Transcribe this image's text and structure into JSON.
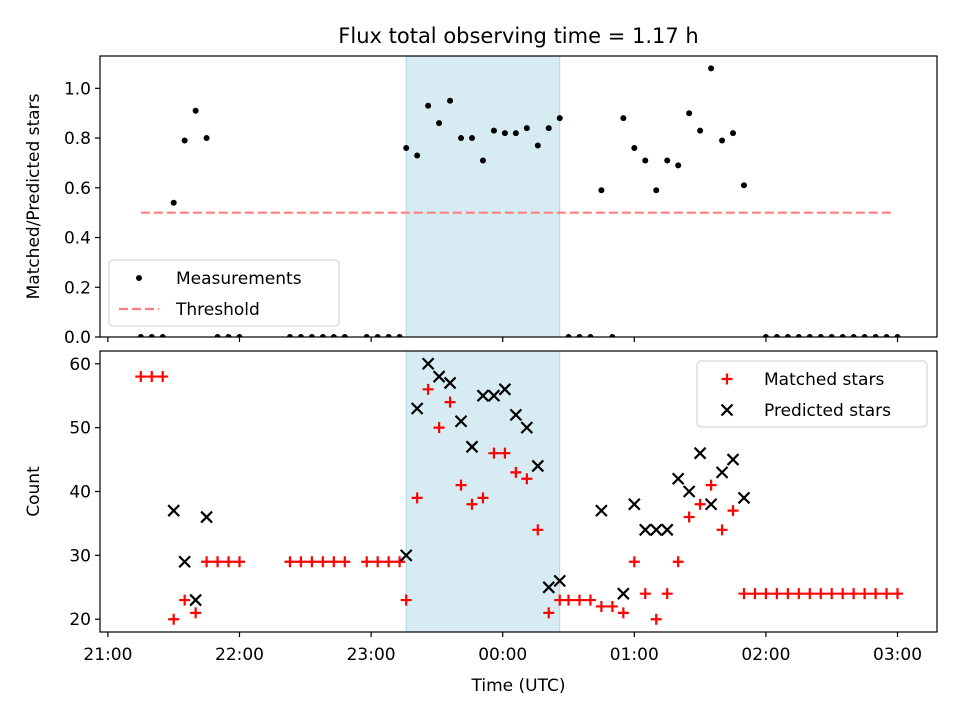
{
  "title": "Flux total observing time = 1.17 h",
  "colors": {
    "matched": "#ff0000",
    "predicted": "#000000",
    "threshold": "#ff7f7f",
    "highlight": "#add8e6"
  },
  "chart_data": [
    {
      "type": "scatter",
      "ylabel": "Matched/Predicted stars",
      "xlabel": "",
      "ylim": [
        0,
        1.13
      ],
      "yticks": [
        "0.0",
        "0.2",
        "0.4",
        "0.6",
        "0.8",
        "1.0"
      ],
      "grid": false,
      "legend_position": "lower-left",
      "highlight_span": [
        "23:16",
        "00:26"
      ],
      "series": [
        {
          "name": "Measurements",
          "marker": "dot",
          "points": [
            [
              "21:15",
              0
            ],
            [
              "21:20",
              0
            ],
            [
              "21:25",
              0
            ],
            [
              "21:30",
              0.54
            ],
            [
              "21:35",
              0.79
            ],
            [
              "21:40",
              0.91
            ],
            [
              "21:45",
              0.8
            ],
            [
              "21:50",
              0
            ],
            [
              "21:55",
              0
            ],
            [
              "22:00",
              0
            ],
            [
              "22:23",
              0
            ],
            [
              "22:28",
              0
            ],
            [
              "22:33",
              0
            ],
            [
              "22:38",
              0
            ],
            [
              "22:43",
              0
            ],
            [
              "22:48",
              0
            ],
            [
              "22:58",
              0
            ],
            [
              "23:03",
              0
            ],
            [
              "23:08",
              0
            ],
            [
              "23:13",
              0
            ],
            [
              "23:16",
              0.76
            ],
            [
              "23:21",
              0.73
            ],
            [
              "23:26",
              0.93
            ],
            [
              "23:31",
              0.86
            ],
            [
              "23:36",
              0.95
            ],
            [
              "23:41",
              0.8
            ],
            [
              "23:46",
              0.8
            ],
            [
              "23:51",
              0.71
            ],
            [
              "23:56",
              0.83
            ],
            [
              "00:01",
              0.82
            ],
            [
              "00:06",
              0.82
            ],
            [
              "00:11",
              0.84
            ],
            [
              "00:16",
              0.77
            ],
            [
              "00:21",
              0.84
            ],
            [
              "00:26",
              0.88
            ],
            [
              "00:30",
              0
            ],
            [
              "00:35",
              0
            ],
            [
              "00:40",
              0
            ],
            [
              "00:50",
              0
            ],
            [
              "00:45",
              0.59
            ],
            [
              "00:55",
              0.88
            ],
            [
              "01:00",
              0.76
            ],
            [
              "01:05",
              0.71
            ],
            [
              "01:10",
              0.59
            ],
            [
              "01:15",
              0.71
            ],
            [
              "01:20",
              0.69
            ],
            [
              "01:25",
              0.9
            ],
            [
              "01:30",
              0.83
            ],
            [
              "01:35",
              1.08
            ],
            [
              "01:40",
              0.79
            ],
            [
              "01:45",
              0.82
            ],
            [
              "01:50",
              0.61
            ],
            [
              "02:00",
              0
            ],
            [
              "02:05",
              0
            ],
            [
              "02:10",
              0
            ],
            [
              "02:15",
              0
            ],
            [
              "02:20",
              0
            ],
            [
              "02:25",
              0
            ],
            [
              "02:30",
              0
            ],
            [
              "02:35",
              0
            ],
            [
              "02:40",
              0
            ],
            [
              "02:45",
              0
            ],
            [
              "02:50",
              0
            ],
            [
              "02:55",
              0
            ],
            [
              "03:00",
              0
            ]
          ]
        },
        {
          "name": "Threshold",
          "marker": "dashed-line",
          "points": [
            [
              "21:15",
              0.5
            ],
            [
              "02:58",
              0.5
            ]
          ]
        }
      ]
    },
    {
      "type": "scatter",
      "ylabel": "Count",
      "xlabel": "Time (UTC)",
      "ylim": [
        18,
        62
      ],
      "yticks": [
        "20",
        "30",
        "40",
        "50",
        "60"
      ],
      "xticks": [
        "21:00",
        "22:00",
        "23:00",
        "00:00",
        "01:00",
        "02:00",
        "03:00"
      ],
      "grid": false,
      "legend_position": "upper-right",
      "highlight_span": [
        "23:16",
        "00:26"
      ],
      "series": [
        {
          "name": "Matched stars",
          "marker": "plus",
          "points": [
            [
              "21:15",
              58
            ],
            [
              "21:20",
              58
            ],
            [
              "21:25",
              58
            ],
            [
              "21:30",
              20
            ],
            [
              "21:35",
              23
            ],
            [
              "21:40",
              21
            ],
            [
              "21:45",
              29
            ],
            [
              "21:50",
              29
            ],
            [
              "21:55",
              29
            ],
            [
              "22:00",
              29
            ],
            [
              "22:23",
              29
            ],
            [
              "22:28",
              29
            ],
            [
              "22:33",
              29
            ],
            [
              "22:38",
              29
            ],
            [
              "22:43",
              29
            ],
            [
              "22:48",
              29
            ],
            [
              "22:58",
              29
            ],
            [
              "23:03",
              29
            ],
            [
              "23:08",
              29
            ],
            [
              "23:13",
              29
            ],
            [
              "23:16",
              23
            ],
            [
              "23:21",
              39
            ],
            [
              "23:26",
              56
            ],
            [
              "23:31",
              50
            ],
            [
              "23:36",
              54
            ],
            [
              "23:41",
              41
            ],
            [
              "23:46",
              38
            ],
            [
              "23:51",
              39
            ],
            [
              "23:56",
              46
            ],
            [
              "00:01",
              46
            ],
            [
              "00:06",
              43
            ],
            [
              "00:11",
              42
            ],
            [
              "00:16",
              34
            ],
            [
              "00:21",
              21
            ],
            [
              "00:26",
              23
            ],
            [
              "00:30",
              23
            ],
            [
              "00:35",
              23
            ],
            [
              "00:40",
              23
            ],
            [
              "00:45",
              22
            ],
            [
              "00:50",
              22
            ],
            [
              "00:55",
              21
            ],
            [
              "01:00",
              29
            ],
            [
              "01:05",
              24
            ],
            [
              "01:10",
              20
            ],
            [
              "01:15",
              24
            ],
            [
              "01:20",
              29
            ],
            [
              "01:25",
              36
            ],
            [
              "01:30",
              38
            ],
            [
              "01:35",
              41
            ],
            [
              "01:40",
              34
            ],
            [
              "01:45",
              37
            ],
            [
              "01:50",
              24
            ],
            [
              "01:55",
              24
            ],
            [
              "02:00",
              24
            ],
            [
              "02:05",
              24
            ],
            [
              "02:10",
              24
            ],
            [
              "02:15",
              24
            ],
            [
              "02:20",
              24
            ],
            [
              "02:25",
              24
            ],
            [
              "02:30",
              24
            ],
            [
              "02:35",
              24
            ],
            [
              "02:40",
              24
            ],
            [
              "02:45",
              24
            ],
            [
              "02:50",
              24
            ],
            [
              "02:55",
              24
            ],
            [
              "03:00",
              24
            ]
          ]
        },
        {
          "name": "Predicted stars",
          "marker": "x",
          "points": [
            [
              "21:30",
              37
            ],
            [
              "21:35",
              29
            ],
            [
              "21:40",
              23
            ],
            [
              "21:45",
              36
            ],
            [
              "23:16",
              30
            ],
            [
              "23:21",
              53
            ],
            [
              "23:26",
              60
            ],
            [
              "23:31",
              58
            ],
            [
              "23:36",
              57
            ],
            [
              "23:41",
              51
            ],
            [
              "23:46",
              47
            ],
            [
              "23:51",
              55
            ],
            [
              "23:56",
              55
            ],
            [
              "00:01",
              56
            ],
            [
              "00:06",
              52
            ],
            [
              "00:11",
              50
            ],
            [
              "00:16",
              44
            ],
            [
              "00:21",
              25
            ],
            [
              "00:26",
              26
            ],
            [
              "00:45",
              37
            ],
            [
              "00:55",
              24
            ],
            [
              "01:00",
              38
            ],
            [
              "01:05",
              34
            ],
            [
              "01:10",
              34
            ],
            [
              "01:15",
              34
            ],
            [
              "01:20",
              42
            ],
            [
              "01:25",
              40
            ],
            [
              "01:30",
              46
            ],
            [
              "01:35",
              38
            ],
            [
              "01:40",
              43
            ],
            [
              "01:45",
              45
            ],
            [
              "01:50",
              39
            ]
          ]
        }
      ]
    }
  ]
}
